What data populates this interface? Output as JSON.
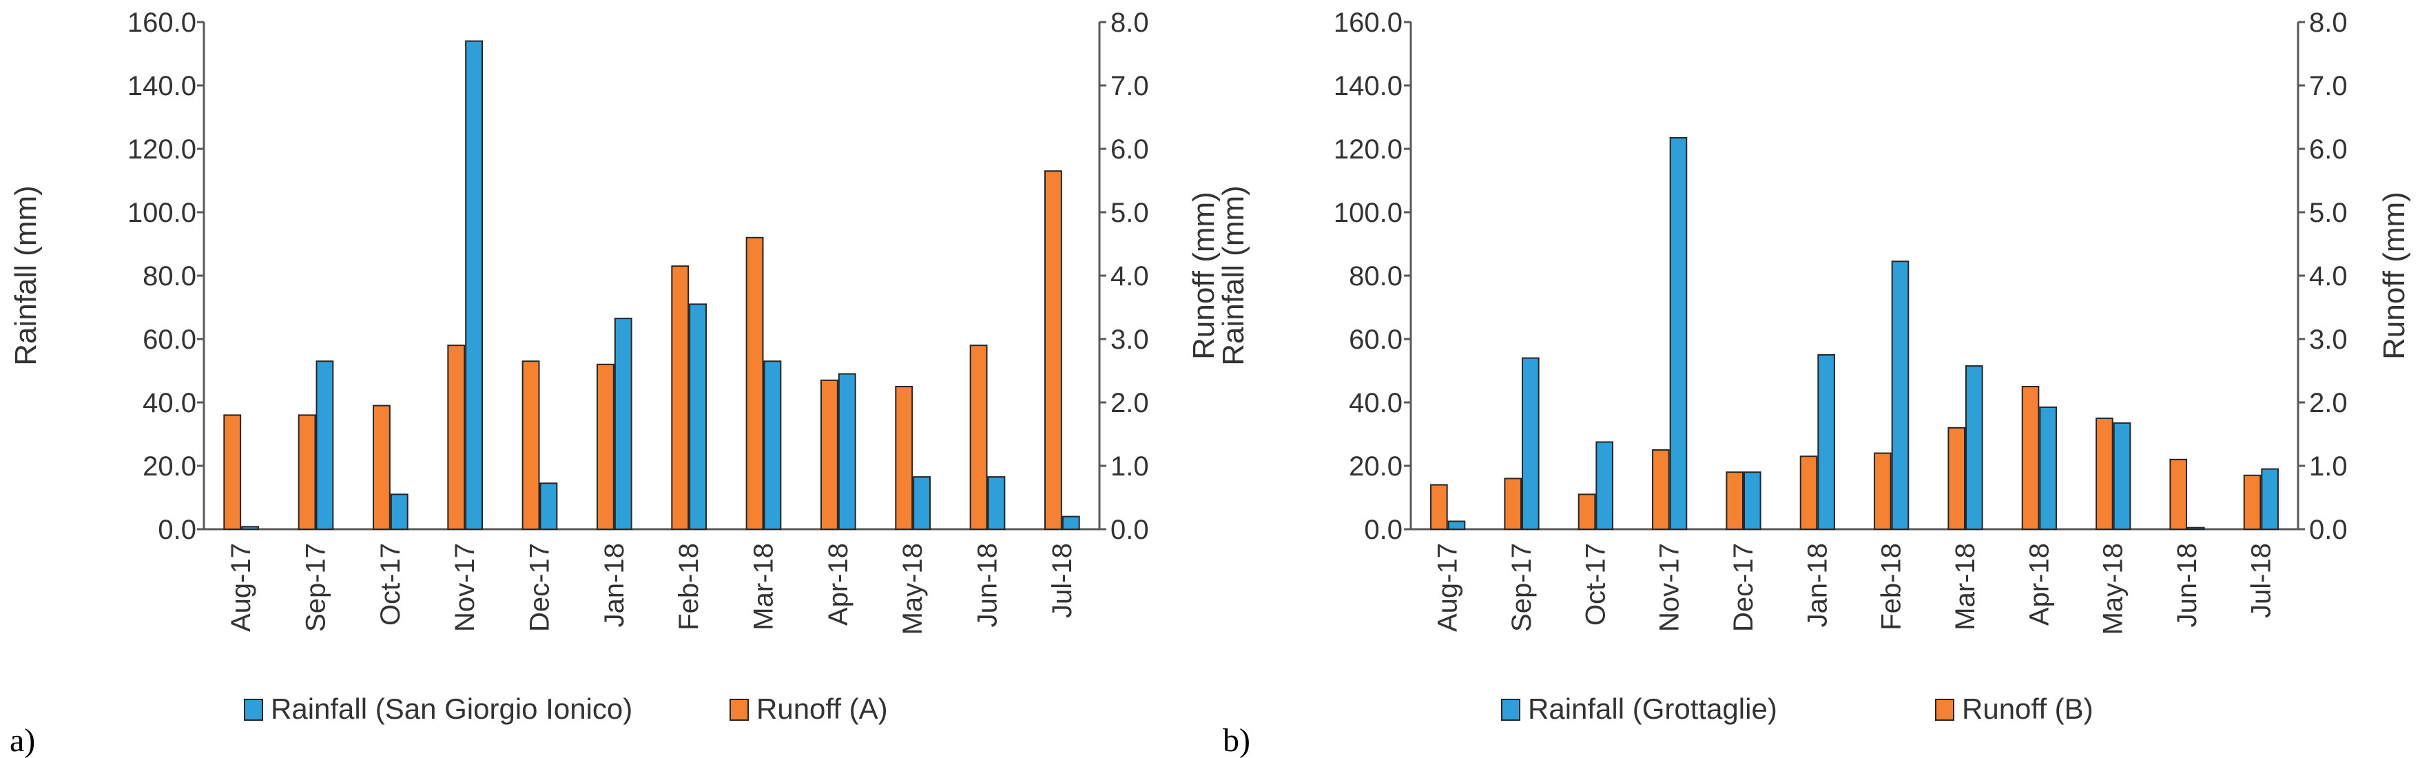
{
  "chart_data": [
    {
      "type": "bar",
      "panel_label": "a)",
      "categories": [
        "Aug-17",
        "Sep-17",
        "Oct-17",
        "Nov-17",
        "Dec-17",
        "Jan-18",
        "Feb-18",
        "Mar-18",
        "Apr-18",
        "May-18",
        "Jun-18",
        "Jul-18"
      ],
      "series": [
        {
          "name": "Runoff (A)",
          "axis": "right",
          "color": "#F58233",
          "values": [
            1.8,
            1.8,
            1.95,
            2.9,
            2.65,
            2.6,
            4.15,
            4.6,
            2.35,
            2.25,
            2.9,
            5.65
          ]
        },
        {
          "name": "Rainfall (San Giorgio Ionico)",
          "axis": "left",
          "color": "#2E9FD9",
          "values": [
            0.8,
            53.0,
            11.0,
            154.0,
            14.5,
            66.5,
            71.0,
            53.0,
            49.0,
            16.5,
            16.5,
            4.0
          ]
        }
      ],
      "legend_order": [
        "Rainfall (San Giorgio Ionico)",
        "Runoff (A)"
      ],
      "ylabel": "Rainfall (mm)",
      "y2label": "Runoff (mm)",
      "ylim": [
        0,
        160
      ],
      "y2lim": [
        0,
        8
      ],
      "yticks": [
        "0.0",
        "20.0",
        "40.0",
        "60.0",
        "80.0",
        "100.0",
        "120.0",
        "140.0",
        "160.0"
      ],
      "y2ticks": [
        "0.0",
        "1.0",
        "2.0",
        "3.0",
        "4.0",
        "5.0",
        "6.0",
        "7.0",
        "8.0"
      ]
    },
    {
      "type": "bar",
      "panel_label": "b)",
      "categories": [
        "Aug-17",
        "Sep-17",
        "Oct-17",
        "Nov-17",
        "Dec-17",
        "Jan-18",
        "Feb-18",
        "Mar-18",
        "Apr-18",
        "May-18",
        "Jun-18",
        "Jul-18"
      ],
      "series": [
        {
          "name": "Runoff  (B)",
          "axis": "right",
          "color": "#F58233",
          "values": [
            0.7,
            0.8,
            0.55,
            1.25,
            0.9,
            1.15,
            1.2,
            1.6,
            2.25,
            1.75,
            1.1,
            0.85
          ]
        },
        {
          "name": "Rainfall (Grottaglie)",
          "axis": "left",
          "color": "#2E9FD9",
          "values": [
            2.5,
            54.0,
            27.5,
            123.5,
            18.0,
            55.0,
            84.5,
            51.5,
            38.5,
            33.5,
            0.5,
            19.0
          ]
        }
      ],
      "legend_order": [
        "Rainfall (Grottaglie)",
        "Runoff  (B)"
      ],
      "ylabel": "Rainfall (mm)",
      "y2label": "Runoff (mm)",
      "ylim": [
        0,
        160
      ],
      "y2lim": [
        0,
        8
      ],
      "yticks": [
        "0.0",
        "20.0",
        "40.0",
        "60.0",
        "80.0",
        "100.0",
        "120.0",
        "140.0",
        "160.0"
      ],
      "y2ticks": [
        "0.0",
        "1.0",
        "2.0",
        "3.0",
        "4.0",
        "5.0",
        "6.0",
        "7.0",
        "8.0"
      ]
    }
  ]
}
